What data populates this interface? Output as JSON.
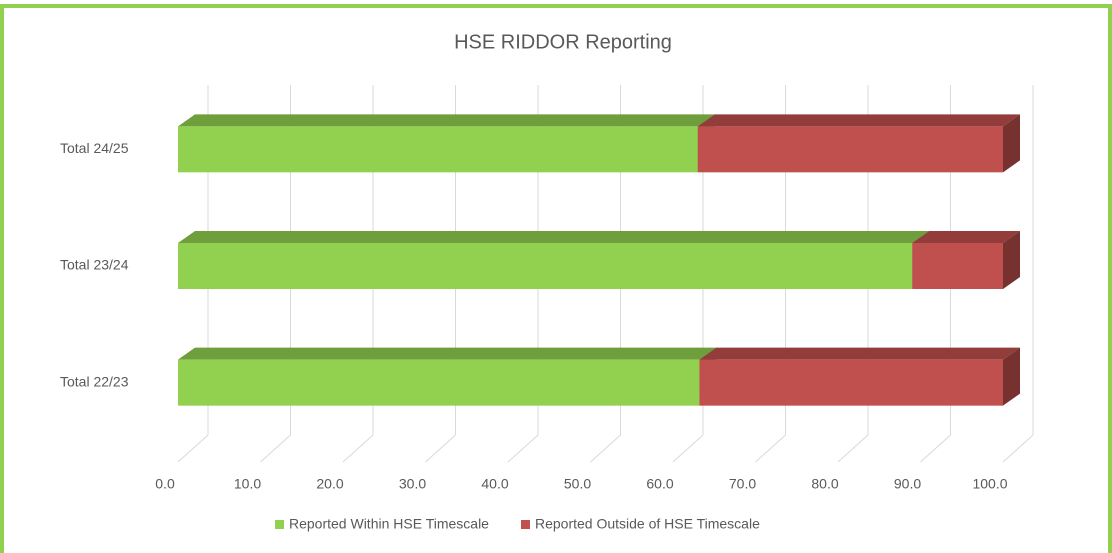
{
  "chart_data": {
    "type": "bar3d_stacked_horizontal",
    "title": "HSE RIDDOR Reporting",
    "categories": [
      "Total 22/23",
      "Total 23/24",
      "Total 24/25"
    ],
    "series": [
      {
        "name": "Reported Within HSE Timescale",
        "color": "#92d050",
        "values": [
          63.2,
          89,
          63
        ]
      },
      {
        "name": "Reported Outside of HSE Timescale",
        "color": "#c0504d",
        "values": [
          36.8,
          11,
          37
        ]
      }
    ],
    "xlim": [
      0,
      100
    ],
    "xticks": [
      {
        "value": 0,
        "label": "0.0"
      },
      {
        "value": 10,
        "label": "10.0"
      },
      {
        "value": 20,
        "label": "20.0"
      },
      {
        "value": 30,
        "label": "30.0"
      },
      {
        "value": 40,
        "label": "40.0"
      },
      {
        "value": 50,
        "label": "50.0"
      },
      {
        "value": 60,
        "label": "60.0"
      },
      {
        "value": 70,
        "label": "70.0"
      },
      {
        "value": 80,
        "label": "80.0"
      },
      {
        "value": 90,
        "label": "90.0"
      },
      {
        "value": 100,
        "label": "100.0"
      }
    ],
    "grid": true,
    "legend": "bottom"
  }
}
